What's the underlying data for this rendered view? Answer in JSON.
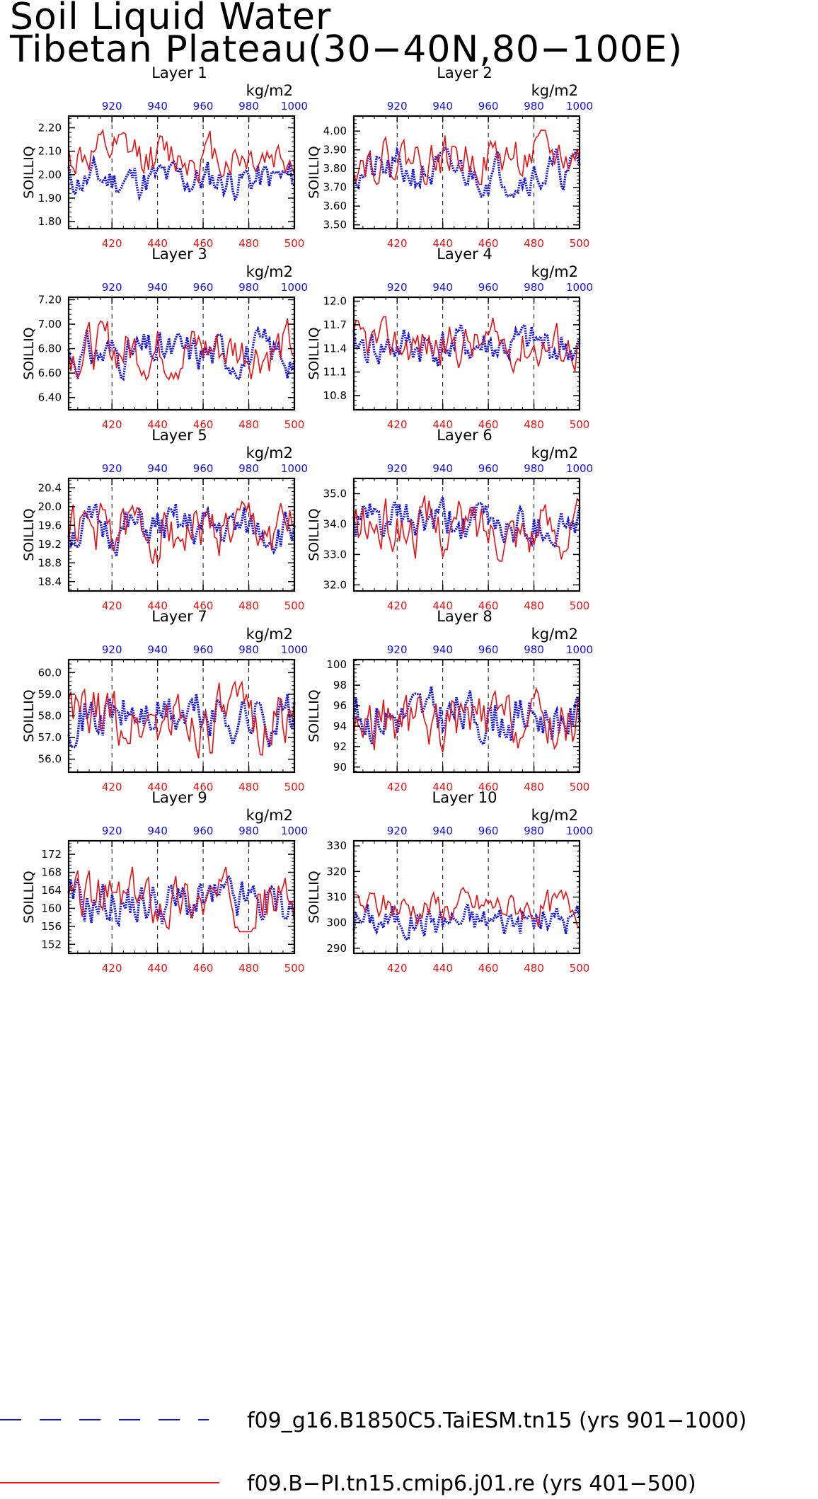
{
  "title": {
    "line1": "Soil Liquid Water",
    "line2": "Tibetan Plateau(30−40N,80−100E)"
  },
  "colors": {
    "series_b": "#ee1111",
    "series_a": "#1111ee",
    "bottom_axis": "#ee1111",
    "top_axis": "#1111ee"
  },
  "legend": [
    {
      "label": "f09_g16.B1850C5.TaiESM.tn15 (yrs 901−1000)",
      "style": "dashed",
      "color": "#1111ee"
    },
    {
      "label": "f09.B−PI.tn15.cmip6.j01.re (yrs 401−500)",
      "style": "solid",
      "color": "#ee1111"
    }
  ],
  "chart_data": [
    {
      "type": "line",
      "title": "Layer 1",
      "ylabel": "SOILLIQ",
      "unit": "kg/m2",
      "ylim": [
        1.77,
        2.25
      ],
      "yticks": [
        "1.80",
        "1.90",
        "2.00",
        "2.10",
        "2.20"
      ],
      "xlim_bottom": [
        401,
        500
      ],
      "xticks_bottom": [
        "420",
        "440",
        "460",
        "480",
        "500"
      ],
      "xlim_top": [
        901,
        1000
      ],
      "xticks_top": [
        "920",
        "940",
        "960",
        "980",
        "1000"
      ],
      "grid_x_dashed": [
        920,
        940,
        960,
        980
      ],
      "series": [
        {
          "axis": "top",
          "style": "dotted-blue",
          "base": 1.98,
          "amp": 0.06,
          "seed": 11
        },
        {
          "axis": "bottom",
          "style": "solid-red",
          "base": 2.08,
          "amp": 0.07,
          "seed": 12
        }
      ]
    },
    {
      "type": "line",
      "title": "Layer 2",
      "ylabel": "SOILLIQ",
      "unit": "kg/m2",
      "ylim": [
        3.48,
        4.08
      ],
      "yticks": [
        "3.50",
        "3.60",
        "3.70",
        "3.80",
        "3.90",
        "4.00"
      ],
      "xlim_bottom": [
        401,
        500
      ],
      "xticks_bottom": [
        "420",
        "440",
        "460",
        "480",
        "500"
      ],
      "xlim_top": [
        901,
        1000
      ],
      "xticks_top": [
        "920",
        "940",
        "960",
        "980",
        "1000"
      ],
      "grid_x_dashed": [
        920,
        940,
        960,
        980
      ],
      "series": [
        {
          "axis": "top",
          "style": "dotted-blue",
          "base": 3.78,
          "amp": 0.08,
          "seed": 21
        },
        {
          "axis": "bottom",
          "style": "solid-red",
          "base": 3.86,
          "amp": 0.09,
          "seed": 22
        }
      ]
    },
    {
      "type": "line",
      "title": "Layer 3",
      "ylabel": "SOILLIQ",
      "unit": "kg/m2",
      "ylim": [
        6.3,
        7.22
      ],
      "yticks": [
        "6.40",
        "6.60",
        "6.80",
        "7.00",
        "7.20"
      ],
      "xlim_bottom": [
        401,
        500
      ],
      "xticks_bottom": [
        "420",
        "440",
        "460",
        "480",
        "500"
      ],
      "xlim_top": [
        901,
        1000
      ],
      "xticks_top": [
        "920",
        "940",
        "960",
        "980",
        "1000"
      ],
      "grid_x_dashed": [
        920,
        940,
        960,
        980
      ],
      "series": [
        {
          "axis": "top",
          "style": "dotted-blue",
          "base": 6.76,
          "amp": 0.13,
          "seed": 31
        },
        {
          "axis": "bottom",
          "style": "solid-red",
          "base": 6.8,
          "amp": 0.16,
          "seed": 32
        }
      ]
    },
    {
      "type": "line",
      "title": "Layer 4",
      "ylabel": "SOILLIQ",
      "unit": "kg/m2",
      "ylim": [
        10.62,
        12.05
      ],
      "yticks": [
        "10.8",
        "11.1",
        "11.4",
        "11.7",
        "12.0"
      ],
      "xlim_bottom": [
        401,
        500
      ],
      "xticks_bottom": [
        "420",
        "440",
        "460",
        "480",
        "500"
      ],
      "xlim_top": [
        901,
        1000
      ],
      "xticks_top": [
        "920",
        "940",
        "960",
        "980",
        "1000"
      ],
      "grid_x_dashed": [
        920,
        940,
        960,
        980
      ],
      "series": [
        {
          "axis": "top",
          "style": "dotted-blue",
          "base": 11.42,
          "amp": 0.2,
          "seed": 41
        },
        {
          "axis": "bottom",
          "style": "solid-red",
          "base": 11.45,
          "amp": 0.22,
          "seed": 42
        }
      ]
    },
    {
      "type": "line",
      "title": "Layer 5",
      "ylabel": "SOILLIQ",
      "unit": "kg/m2",
      "ylim": [
        18.2,
        20.6
      ],
      "yticks": [
        "18.4",
        "18.8",
        "19.2",
        "19.6",
        "20.0",
        "20.4"
      ],
      "xlim_bottom": [
        401,
        500
      ],
      "xticks_bottom": [
        "420",
        "440",
        "460",
        "480",
        "500"
      ],
      "xlim_top": [
        901,
        1000
      ],
      "xticks_top": [
        "920",
        "940",
        "960",
        "980",
        "1000"
      ],
      "grid_x_dashed": [
        920,
        940,
        960,
        980
      ],
      "series": [
        {
          "axis": "top",
          "style": "dotted-blue",
          "base": 19.5,
          "amp": 0.35,
          "seed": 51
        },
        {
          "axis": "bottom",
          "style": "solid-red",
          "base": 19.5,
          "amp": 0.45,
          "seed": 52
        }
      ]
    },
    {
      "type": "line",
      "title": "Layer 6",
      "ylabel": "SOILLIQ",
      "unit": "kg/m2",
      "ylim": [
        31.8,
        35.5
      ],
      "yticks": [
        "32.0",
        "33.0",
        "34.0",
        "35.0"
      ],
      "xlim_bottom": [
        401,
        500
      ],
      "xticks_bottom": [
        "420",
        "440",
        "460",
        "480",
        "500"
      ],
      "xlim_top": [
        901,
        1000
      ],
      "xticks_top": [
        "920",
        "940",
        "960",
        "980",
        "1000"
      ],
      "grid_x_dashed": [
        920,
        940,
        960,
        980
      ],
      "series": [
        {
          "axis": "top",
          "style": "dotted-blue",
          "base": 34.0,
          "amp": 0.55,
          "seed": 61
        },
        {
          "axis": "bottom",
          "style": "solid-red",
          "base": 33.9,
          "amp": 0.7,
          "seed": 62
        }
      ]
    },
    {
      "type": "line",
      "title": "Layer 7",
      "ylabel": "SOILLIQ",
      "unit": "kg/m2",
      "ylim": [
        55.4,
        60.6
      ],
      "yticks": [
        "56.0",
        "57.0",
        "58.0",
        "59.0",
        "60.0"
      ],
      "xlim_bottom": [
        401,
        500
      ],
      "xticks_bottom": [
        "420",
        "440",
        "460",
        "480",
        "500"
      ],
      "xlim_top": [
        901,
        1000
      ],
      "xticks_top": [
        "920",
        "940",
        "960",
        "980",
        "1000"
      ],
      "grid_x_dashed": [
        920,
        940,
        960,
        980
      ],
      "series": [
        {
          "axis": "top",
          "style": "dotted-blue",
          "base": 58.0,
          "amp": 0.9,
          "seed": 71
        },
        {
          "axis": "bottom",
          "style": "solid-red",
          "base": 57.8,
          "amp": 1.1,
          "seed": 72
        }
      ]
    },
    {
      "type": "line",
      "title": "Layer 8",
      "ylabel": "SOILLIQ",
      "unit": "kg/m2",
      "ylim": [
        89.5,
        100.5
      ],
      "yticks": [
        "90",
        "92",
        "94",
        "96",
        "98",
        "100"
      ],
      "xlim_bottom": [
        401,
        500
      ],
      "xticks_bottom": [
        "420",
        "440",
        "460",
        "480",
        "500"
      ],
      "xlim_top": [
        901,
        1000
      ],
      "xticks_top": [
        "920",
        "940",
        "960",
        "980",
        "1000"
      ],
      "grid_x_dashed": [
        920,
        940,
        960,
        980
      ],
      "series": [
        {
          "axis": "top",
          "style": "dotted-blue",
          "base": 95.0,
          "amp": 1.8,
          "seed": 81
        },
        {
          "axis": "bottom",
          "style": "solid-red",
          "base": 94.3,
          "amp": 2.1,
          "seed": 82
        }
      ]
    },
    {
      "type": "line",
      "title": "Layer 9",
      "ylabel": "SOILLIQ",
      "unit": "kg/m2",
      "ylim": [
        150,
        175
      ],
      "yticks": [
        "152",
        "156",
        "160",
        "164",
        "168",
        "172"
      ],
      "xlim_bottom": [
        401,
        500
      ],
      "xticks_bottom": [
        "420",
        "440",
        "460",
        "480",
        "500"
      ],
      "xlim_top": [
        901,
        1000
      ],
      "xticks_top": [
        "920",
        "940",
        "960",
        "980",
        "1000"
      ],
      "grid_x_dashed": [
        920,
        940,
        960,
        980
      ],
      "series": [
        {
          "axis": "top",
          "style": "dotted-blue",
          "base": 161,
          "amp": 4,
          "seed": 91
        },
        {
          "axis": "bottom",
          "style": "solid-red",
          "base": 162,
          "amp": 4.5,
          "seed": 92
        }
      ]
    },
    {
      "type": "line",
      "title": "Layer 10",
      "ylabel": "SOILLIQ",
      "unit": "kg/m2",
      "ylim": [
        288,
        332
      ],
      "yticks": [
        "290",
        "300",
        "310",
        "320",
        "330"
      ],
      "xlim_bottom": [
        401,
        500
      ],
      "xticks_bottom": [
        "420",
        "440",
        "460",
        "480",
        "500"
      ],
      "xlim_top": [
        901,
        1000
      ],
      "xticks_top": [
        "920",
        "940",
        "960",
        "980",
        "1000"
      ],
      "grid_x_dashed": [
        920,
        940,
        960,
        980
      ],
      "series": [
        {
          "axis": "top",
          "style": "dotted-blue",
          "base": 301,
          "amp": 5,
          "seed": 101
        },
        {
          "axis": "bottom",
          "style": "solid-red",
          "base": 306,
          "amp": 5,
          "seed": 102
        }
      ]
    }
  ]
}
